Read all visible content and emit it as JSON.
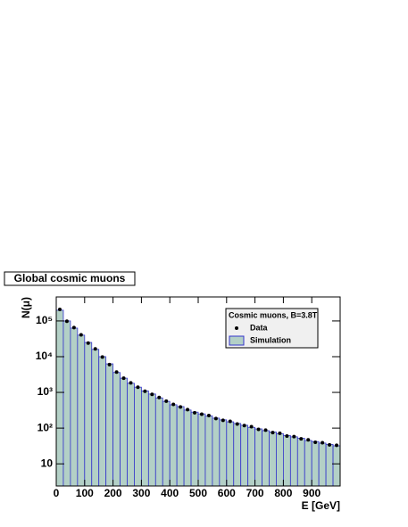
{
  "chart_data": {
    "type": "histogram",
    "title": "Global cosmic muons",
    "xlabel": "E [GeV]",
    "ylabel": "N(μ)",
    "legend_title": "Cosmic muons, B=3.8T",
    "legend": "upper right",
    "log_y": true,
    "bins": [
      0,
      25,
      50,
      75,
      100,
      125,
      150,
      175,
      200,
      225,
      250,
      275,
      300,
      325,
      350,
      375,
      400,
      425,
      450,
      475,
      500,
      525,
      550,
      575,
      600,
      625,
      650,
      675,
      700,
      725,
      750,
      775,
      800,
      825,
      850,
      875,
      900,
      925,
      950,
      975,
      1000
    ],
    "series": [
      {
        "name": "Simulation",
        "color": "#b3d0c6",
        "edge_color": "#3333cc",
        "style": "fill",
        "values": [
          200000,
          100000,
          63000,
          40000,
          25000,
          16000,
          10000,
          6300,
          3600,
          2500,
          1800,
          1400,
          1100,
          900,
          700,
          560,
          450,
          400,
          320,
          280,
          250,
          220,
          190,
          170,
          150,
          135,
          120,
          105,
          95,
          85,
          78,
          70,
          62,
          57,
          52,
          45,
          42,
          38,
          35,
          32
        ]
      },
      {
        "name": "Data",
        "color": "#000000",
        "style": "points",
        "values": [
          210000,
          98000,
          65000,
          41000,
          24000,
          16500,
          9800,
          6000,
          3700,
          2500,
          1850,
          1400,
          1080,
          880,
          720,
          570,
          460,
          390,
          330,
          270,
          245,
          225,
          185,
          165,
          155,
          130,
          118,
          110,
          92,
          88,
          75,
          72,
          60,
          58,
          50,
          47,
          40,
          39,
          34,
          33
        ]
      }
    ],
    "xlim": [
      0,
      1000
    ],
    "xticks": [
      0,
      100,
      200,
      300,
      400,
      500,
      600,
      700,
      800,
      900
    ],
    "ylim": [
      2.4,
      470000
    ],
    "yticks": [
      10,
      {
        "value": 100,
        "label": "10²"
      },
      {
        "value": 1000,
        "label": "10³"
      },
      {
        "value": 10000,
        "label": "10⁴"
      },
      {
        "value": 100000,
        "label": "10⁵"
      }
    ]
  }
}
